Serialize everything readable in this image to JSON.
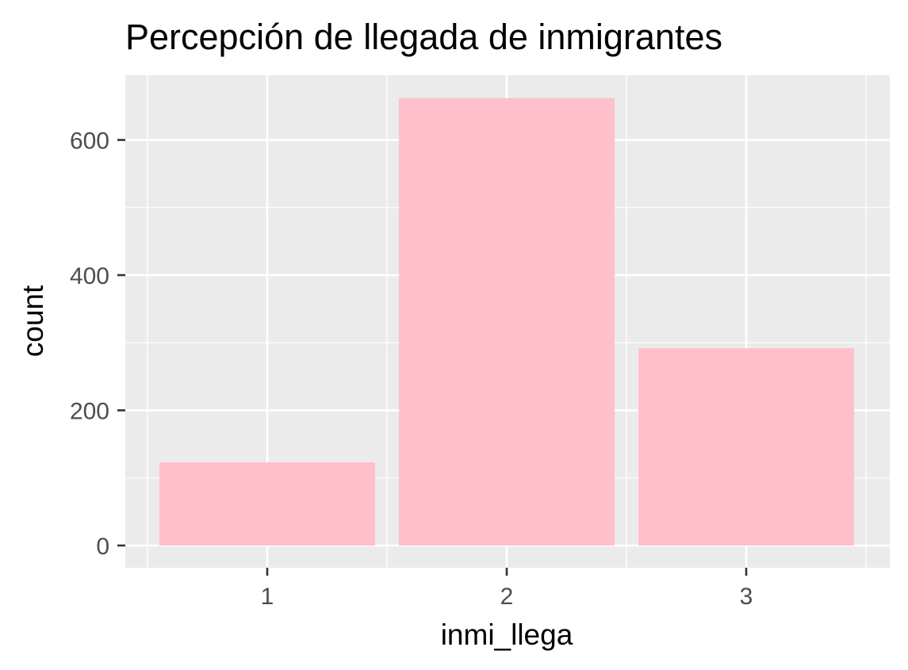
{
  "chart_data": {
    "type": "bar",
    "title": "Percepción de llegada de inmigrantes",
    "xlabel": "inmi_llega",
    "ylabel": "count",
    "categories": [
      "1",
      "2",
      "3"
    ],
    "values": [
      123,
      662,
      292
    ],
    "ylim": [
      0,
      690
    ],
    "yticks": [
      0,
      200,
      400,
      600
    ],
    "grid": true,
    "colors": {
      "bar": "#FFC0CB",
      "panel": "#EBEBEB",
      "grid": "#FFFFFF",
      "tick": "#333333"
    }
  }
}
